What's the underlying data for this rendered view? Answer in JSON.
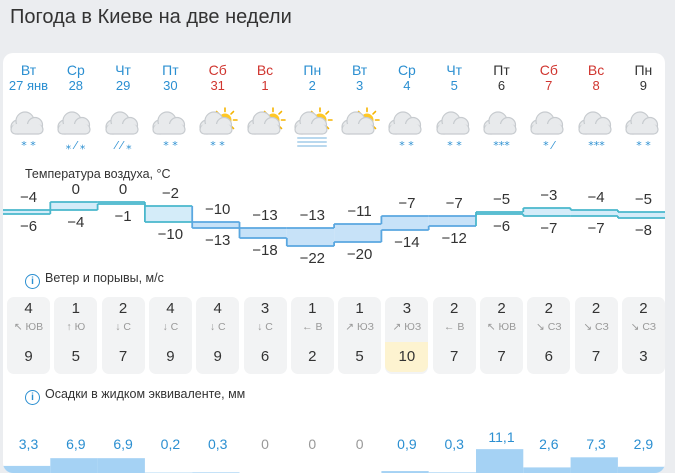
{
  "title": "Погода в Киеве на две недели",
  "days": [
    {
      "dow": "Вт",
      "date": "27 янв",
      "color": "wd",
      "icon": "cloud-snow-icon",
      "precip_mark": "* *",
      "precip_color": "#2b8fd1"
    },
    {
      "dow": "Ср",
      "date": "28",
      "color": "wd",
      "icon": "cloud-sleet-icon",
      "precip_mark": "⁎ ⁄ ⁎",
      "precip_color": "#2b8fd1"
    },
    {
      "dow": "Чт",
      "date": "29",
      "color": "wd",
      "icon": "cloud-sleet-icon",
      "precip_mark": "⁄ ⁄ ⁎",
      "precip_color": "#2b8fd1"
    },
    {
      "dow": "Пт",
      "date": "30",
      "color": "wd",
      "icon": "cloud-snow-icon",
      "precip_mark": "* *",
      "precip_color": "#2b8fd1"
    },
    {
      "dow": "Сб",
      "date": "31",
      "color": "we",
      "icon": "sun-cloud-snow-icon",
      "precip_mark": "* *",
      "precip_color": "#2b8fd1"
    },
    {
      "dow": "Вс",
      "date": "1",
      "color": "we",
      "icon": "sun-cloud-icon",
      "precip_mark": "",
      "precip_color": "#2b8fd1"
    },
    {
      "dow": "Пн",
      "date": "2",
      "color": "wd",
      "icon": "sun-fog-icon",
      "precip_mark": "",
      "precip_color": "#2b8fd1"
    },
    {
      "dow": "Вт",
      "date": "3",
      "color": "wd",
      "icon": "sun-cloud-icon",
      "precip_mark": "",
      "precip_color": "#2b8fd1"
    },
    {
      "dow": "Ср",
      "date": "4",
      "color": "wd",
      "icon": "cloud-snow-icon",
      "precip_mark": "* *",
      "precip_color": "#2b8fd1"
    },
    {
      "dow": "Чт",
      "date": "5",
      "color": "wd",
      "icon": "cloud-snow-icon",
      "precip_mark": "* *",
      "precip_color": "#2b8fd1"
    },
    {
      "dow": "Пт",
      "date": "6",
      "color": "dark",
      "icon": "cloud-heavy-snow-icon",
      "precip_mark": "***",
      "precip_color": "#2b8fd1"
    },
    {
      "dow": "Сб",
      "date": "7",
      "color": "we",
      "icon": "cloud-sleet-icon",
      "precip_mark": "* ⁄",
      "precip_color": "#2b8fd1"
    },
    {
      "dow": "Вс",
      "date": "8",
      "color": "we",
      "icon": "cloud-heavy-snow-icon",
      "precip_mark": "***",
      "precip_color": "#2b8fd1"
    },
    {
      "dow": "Пн",
      "date": "9",
      "color": "dark",
      "icon": "cloud-snow-icon",
      "precip_mark": "* *",
      "precip_color": "#2b8fd1"
    }
  ],
  "temperature": {
    "label": "Температура воздуха, °C",
    "max": [
      "−4",
      "0",
      "0",
      "−2",
      "−10",
      "−13",
      "−13",
      "−11",
      "−7",
      "−7",
      "−5",
      "−3",
      "−4",
      "−5"
    ],
    "min": [
      "−6",
      "−4",
      "−1",
      "−10",
      "−13",
      "−18",
      "−22",
      "−20",
      "−14",
      "−12",
      "−6",
      "−7",
      "−7",
      "−8"
    ],
    "max_values": [
      -4,
      0,
      0,
      -2,
      -10,
      -13,
      -13,
      -11,
      -7,
      -7,
      -5,
      -3,
      -4,
      -5
    ],
    "min_values": [
      -6,
      -4,
      -1,
      -10,
      -13,
      -18,
      -22,
      -20,
      -14,
      -12,
      -6,
      -7,
      -7,
      -8
    ]
  },
  "wind": {
    "label": "Ветер и порывы, м/с",
    "speed": [
      "4",
      "1",
      "2",
      "4",
      "4",
      "3",
      "1",
      "1",
      "3",
      "2",
      "2",
      "2",
      "2",
      "2"
    ],
    "direction": [
      "↖ ЮВ",
      "↑ Ю",
      "↓ С",
      "↓ С",
      "↓ С",
      "↓ С",
      "← В",
      "↗ ЮЗ",
      "↗ ЮЗ",
      "← В",
      "↖ ЮВ",
      "↘ СЗ",
      "↘ СЗ",
      "↘ СЗ"
    ],
    "gust": [
      "9",
      "5",
      "7",
      "9",
      "9",
      "6",
      "2",
      "5",
      "10",
      "7",
      "7",
      "6",
      "7",
      "3"
    ],
    "highlight_gust_index": 8,
    "highlight_color": "#fdf3d0"
  },
  "precip": {
    "label": "Осадки в жидком эквиваленте, мм",
    "text": [
      "3,3",
      "6,9",
      "6,9",
      "0,2",
      "0,3",
      "0",
      "0",
      "0",
      "0,9",
      "0,3",
      "11,1",
      "2,6",
      "7,3",
      "2,9"
    ],
    "values": [
      3.3,
      6.9,
      6.9,
      0.2,
      0.3,
      0,
      0,
      0,
      0.9,
      0.3,
      11.1,
      2.6,
      7.3,
      2.9
    ],
    "bar_color": "#a5d2f4",
    "text_color": "#2b8fd1",
    "zero_color": "#999999"
  },
  "colors": {
    "temp_fill": "#c7e2f8",
    "temp_line": "#5aa7e0",
    "warm_fill": "#d4ecf9",
    "warm_line": "#49b7cc"
  }
}
